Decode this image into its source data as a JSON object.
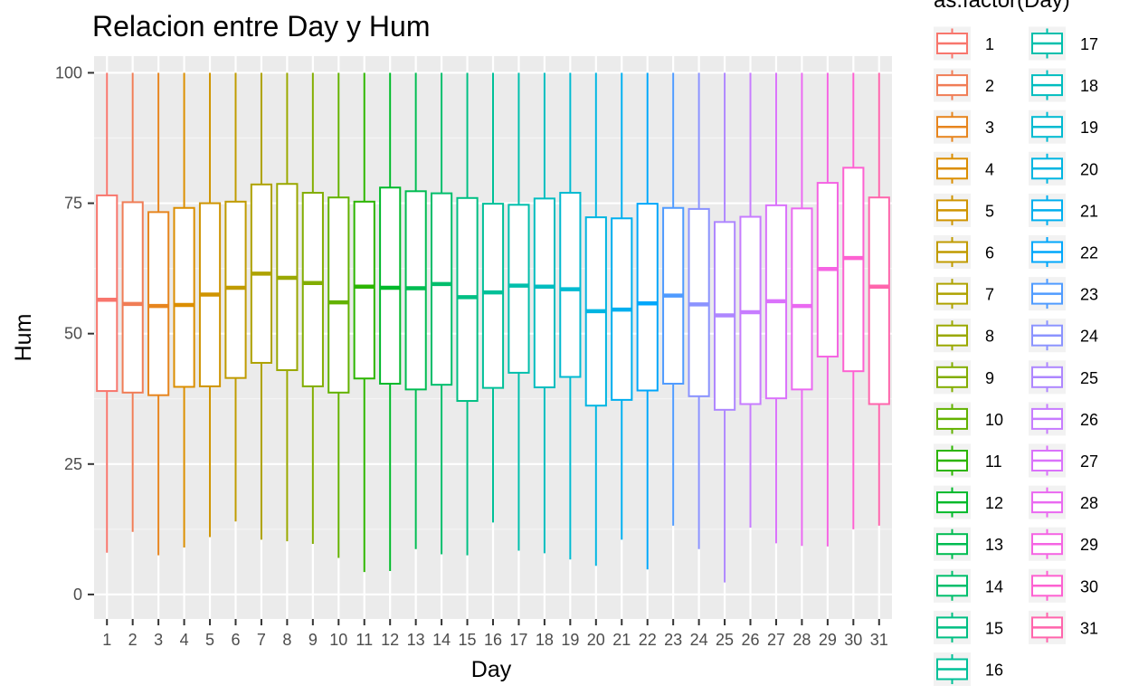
{
  "chart_data": {
    "type": "boxplot",
    "title": "Relacion entre Day y Hum",
    "xlabel": "Day",
    "ylabel": "Hum",
    "ylim": [
      0,
      100
    ],
    "yticks": [
      0,
      25,
      50,
      75,
      100
    ],
    "grid": true,
    "legend_position": "right",
    "legend_title": "as.factor(Day)",
    "series": [
      {
        "name": "1",
        "color": "#F8766D",
        "min": 8,
        "q1": 39,
        "median": 56.5,
        "q3": 76.5,
        "max": 100
      },
      {
        "name": "2",
        "color": "#F07D56",
        "min": 12,
        "q1": 38.7,
        "median": 55.7,
        "q3": 75.2,
        "max": 100
      },
      {
        "name": "3",
        "color": "#E7851E",
        "min": 7.5,
        "q1": 38.2,
        "median": 55.3,
        "q3": 73.3,
        "max": 100
      },
      {
        "name": "4",
        "color": "#DB8E00",
        "min": 9,
        "q1": 39.8,
        "median": 55.5,
        "q3": 74.1,
        "max": 100
      },
      {
        "name": "5",
        "color": "#CF9400",
        "min": 11,
        "q1": 39.9,
        "median": 57.5,
        "q3": 75.0,
        "max": 100
      },
      {
        "name": "6",
        "color": "#C09B00",
        "min": 14,
        "q1": 41.5,
        "median": 58.8,
        "q3": 75.3,
        "max": 100
      },
      {
        "name": "7",
        "color": "#AEA200",
        "min": 10.5,
        "q1": 44.4,
        "median": 61.5,
        "q3": 78.6,
        "max": 100
      },
      {
        "name": "8",
        "color": "#9AA800",
        "min": 10.2,
        "q1": 43.0,
        "median": 60.7,
        "q3": 78.7,
        "max": 100
      },
      {
        "name": "9",
        "color": "#82AD00",
        "min": 9.7,
        "q1": 39.9,
        "median": 59.7,
        "q3": 77.0,
        "max": 100
      },
      {
        "name": "10",
        "color": "#63B200",
        "min": 7,
        "q1": 38.7,
        "median": 56.0,
        "q3": 76.1,
        "max": 100
      },
      {
        "name": "11",
        "color": "#2CB500",
        "min": 4.3,
        "q1": 41.4,
        "median": 59.0,
        "q3": 75.3,
        "max": 100
      },
      {
        "name": "12",
        "color": "#00B92A",
        "min": 4.5,
        "q1": 40.4,
        "median": 58.8,
        "q3": 78.0,
        "max": 100
      },
      {
        "name": "13",
        "color": "#00BC51",
        "min": 8.7,
        "q1": 39.3,
        "median": 58.7,
        "q3": 77.3,
        "max": 100
      },
      {
        "name": "14",
        "color": "#00BE6C",
        "min": 7.7,
        "q1": 40.2,
        "median": 59.5,
        "q3": 76.9,
        "max": 100
      },
      {
        "name": "15",
        "color": "#00BF83",
        "min": 7.5,
        "q1": 37.1,
        "median": 57.0,
        "q3": 76.0,
        "max": 100
      },
      {
        "name": "16",
        "color": "#00C098",
        "min": 13.8,
        "q1": 39.6,
        "median": 57.9,
        "q3": 74.9,
        "max": 100
      },
      {
        "name": "17",
        "color": "#00BFAC",
        "min": 8.4,
        "q1": 42.5,
        "median": 59.2,
        "q3": 74.7,
        "max": 100
      },
      {
        "name": "18",
        "color": "#00BDBF",
        "min": 7.9,
        "q1": 39.7,
        "median": 59.0,
        "q3": 75.9,
        "max": 100
      },
      {
        "name": "19",
        "color": "#00BAD1",
        "min": 6.7,
        "q1": 41.7,
        "median": 58.5,
        "q3": 77.0,
        "max": 100
      },
      {
        "name": "20",
        "color": "#00B5E1",
        "min": 5.5,
        "q1": 36.2,
        "median": 54.3,
        "q3": 72.3,
        "max": 100
      },
      {
        "name": "21",
        "color": "#00AFEF",
        "min": 10.5,
        "q1": 37.3,
        "median": 54.6,
        "q3": 72.1,
        "max": 100
      },
      {
        "name": "22",
        "color": "#00A7FB",
        "min": 4.8,
        "q1": 39.1,
        "median": 55.8,
        "q3": 74.9,
        "max": 100
      },
      {
        "name": "23",
        "color": "#4F9BFF",
        "min": 13.2,
        "q1": 40.4,
        "median": 57.3,
        "q3": 74.1,
        "max": 100
      },
      {
        "name": "24",
        "color": "#8B93FF",
        "min": 8.7,
        "q1": 38.0,
        "median": 55.6,
        "q3": 73.9,
        "max": 100
      },
      {
        "name": "25",
        "color": "#AE87FF",
        "min": 2.3,
        "q1": 35.4,
        "median": 53.5,
        "q3": 71.4,
        "max": 100
      },
      {
        "name": "26",
        "color": "#C77CFF",
        "min": 12.8,
        "q1": 36.5,
        "median": 54.1,
        "q3": 72.4,
        "max": 100
      },
      {
        "name": "27",
        "color": "#DA72FB",
        "min": 9.8,
        "q1": 37.6,
        "median": 56.2,
        "q3": 74.6,
        "max": 100
      },
      {
        "name": "28",
        "color": "#EA6AF1",
        "min": 9.3,
        "q1": 39.3,
        "median": 55.3,
        "q3": 74.0,
        "max": 100
      },
      {
        "name": "29",
        "color": "#F564E3",
        "min": 9.2,
        "q1": 45.6,
        "median": 62.4,
        "q3": 78.9,
        "max": 100
      },
      {
        "name": "30",
        "color": "#FD61D1",
        "min": 12.5,
        "q1": 42.8,
        "median": 64.5,
        "q3": 81.8,
        "max": 100
      },
      {
        "name": "31",
        "color": "#FF65AC",
        "min": 13.2,
        "q1": 36.5,
        "median": 59.0,
        "q3": 76.1,
        "max": 100
      }
    ]
  }
}
